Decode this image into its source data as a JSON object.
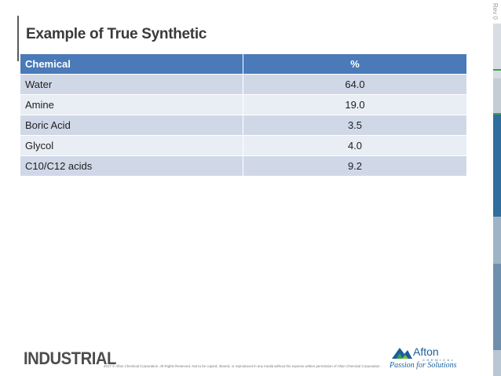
{
  "rev": "Rev 0",
  "title": "Example of True Synthetic",
  "table": {
    "headers": [
      "Chemical",
      "%"
    ],
    "rows": [
      [
        "Water",
        "64.0"
      ],
      [
        "Amine",
        "19.0"
      ],
      [
        "Boric Acid",
        "3.5"
      ],
      [
        "Glycol",
        "4.0"
      ],
      [
        "C10/C12 acids",
        "9.2"
      ]
    ]
  },
  "footer": {
    "industrial": "INDUSTRIAL",
    "copyright": "2017 © Afton Chemical Corporation. All Rights Reserved. Not to be copied, shared, or reproduced in any media without the express written permission of Afton Chemical Corporation.",
    "logo_name": "Afton",
    "logo_sub": "CHEMICAL",
    "logo_tag": "Passion for Solutions"
  },
  "colors": {
    "header": "#4a7ab8",
    "row_odd": "#d0d8e8",
    "row_even": "#e9edf4",
    "accent_green": "#3aa346",
    "brand_blue": "#1a5f9a"
  }
}
